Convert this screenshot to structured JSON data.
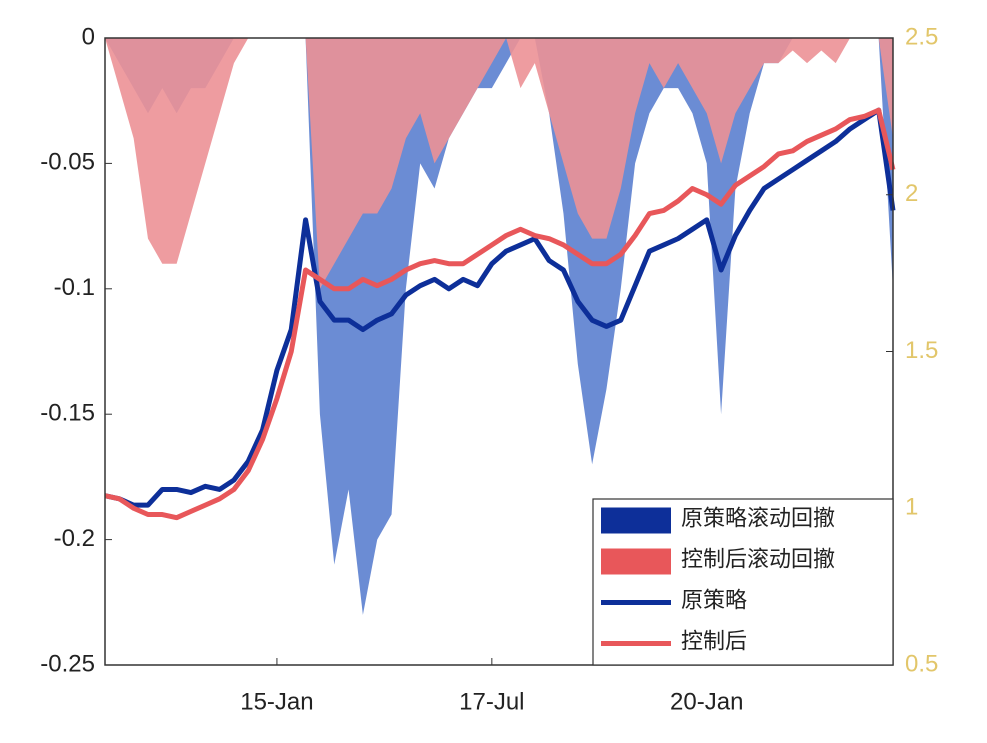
{
  "chart_data": {
    "type": "line",
    "categories": [
      null,
      null,
      null,
      null,
      null,
      null,
      null,
      null,
      null,
      null,
      null,
      null,
      "15-Jan",
      null,
      null,
      null,
      null,
      null,
      null,
      null,
      null,
      null,
      null,
      null,
      null,
      null,
      null,
      "17-Jul",
      null,
      null,
      null,
      null,
      null,
      null,
      null,
      null,
      null,
      null,
      null,
      null,
      null,
      null,
      "20-Jan",
      null,
      null,
      null,
      null,
      null,
      null,
      null,
      null,
      null,
      null,
      null,
      null,
      null
    ],
    "ylim": [
      -0.25,
      0
    ],
    "yticks": [
      0,
      -0.05,
      -0.1,
      -0.15,
      -0.2,
      -0.25
    ],
    "y2lim": [
      0.5,
      2.5
    ],
    "y2ticks": [
      0.5,
      1,
      1.5,
      2,
      2.5
    ],
    "y2_tick_color": "#e2c66a",
    "legend": "lower right",
    "series": [
      {
        "name": "原策略滚动回撤",
        "style": "area",
        "color": "#5b7fcf",
        "legend_color": "#0d2f99",
        "values": [
          0,
          -0.01,
          -0.02,
          -0.03,
          -0.02,
          -0.03,
          -0.02,
          -0.02,
          -0.01,
          0,
          0,
          0,
          0,
          0,
          0,
          -0.15,
          -0.21,
          -0.18,
          -0.23,
          -0.2,
          -0.19,
          -0.1,
          -0.05,
          -0.06,
          -0.04,
          -0.03,
          -0.02,
          -0.02,
          -0.01,
          0,
          0,
          -0.03,
          -0.07,
          -0.13,
          -0.17,
          -0.14,
          -0.1,
          -0.05,
          -0.03,
          -0.02,
          -0.02,
          -0.03,
          -0.05,
          -0.15,
          -0.06,
          -0.03,
          -0.01,
          -0.01,
          0,
          0,
          0,
          0,
          0,
          0,
          0,
          -0.1
        ]
      },
      {
        "name": "控制后滚动回撤",
        "style": "area",
        "color": "#ec9196",
        "legend_color": "#e8575a",
        "values": [
          0,
          -0.02,
          -0.04,
          -0.08,
          -0.09,
          -0.09,
          -0.07,
          -0.05,
          -0.03,
          -0.01,
          0,
          0,
          0,
          0,
          0,
          -0.1,
          -0.09,
          -0.08,
          -0.07,
          -0.07,
          -0.06,
          -0.04,
          -0.03,
          -0.05,
          -0.04,
          -0.03,
          -0.02,
          -0.01,
          0,
          -0.02,
          -0.01,
          -0.03,
          -0.05,
          -0.07,
          -0.08,
          -0.08,
          -0.06,
          -0.03,
          -0.01,
          -0.02,
          -0.01,
          -0.02,
          -0.03,
          -0.05,
          -0.03,
          -0.02,
          -0.01,
          -0.01,
          -0.005,
          -0.01,
          -0.005,
          -0.01,
          0,
          0,
          0,
          -0.04
        ]
      },
      {
        "name": "原策略",
        "style": "line",
        "axis": "y2",
        "color": "#0d2f99",
        "values": [
          1.04,
          1.03,
          1.01,
          1.01,
          1.06,
          1.06,
          1.05,
          1.07,
          1.06,
          1.09,
          1.15,
          1.25,
          1.44,
          1.57,
          1.92,
          1.66,
          1.6,
          1.6,
          1.57,
          1.6,
          1.62,
          1.68,
          1.71,
          1.73,
          1.7,
          1.73,
          1.71,
          1.78,
          1.82,
          1.84,
          1.86,
          1.79,
          1.76,
          1.66,
          1.6,
          1.58,
          1.6,
          1.71,
          1.82,
          1.84,
          1.86,
          1.89,
          1.92,
          1.76,
          1.87,
          1.95,
          2.02,
          2.05,
          2.08,
          2.11,
          2.14,
          2.17,
          2.21,
          2.24,
          2.27,
          1.95
        ]
      },
      {
        "name": "控制后",
        "style": "line",
        "axis": "y2",
        "color": "#e8575a",
        "values": [
          1.04,
          1.03,
          1.0,
          0.98,
          0.98,
          0.97,
          0.99,
          1.01,
          1.03,
          1.06,
          1.12,
          1.22,
          1.35,
          1.5,
          1.76,
          1.73,
          1.7,
          1.7,
          1.73,
          1.71,
          1.73,
          1.76,
          1.78,
          1.79,
          1.78,
          1.78,
          1.81,
          1.84,
          1.87,
          1.89,
          1.87,
          1.86,
          1.84,
          1.81,
          1.78,
          1.78,
          1.81,
          1.87,
          1.94,
          1.95,
          1.98,
          2.02,
          2.0,
          1.97,
          2.03,
          2.06,
          2.09,
          2.13,
          2.14,
          2.17,
          2.19,
          2.21,
          2.24,
          2.25,
          2.27,
          2.08
        ]
      }
    ]
  }
}
